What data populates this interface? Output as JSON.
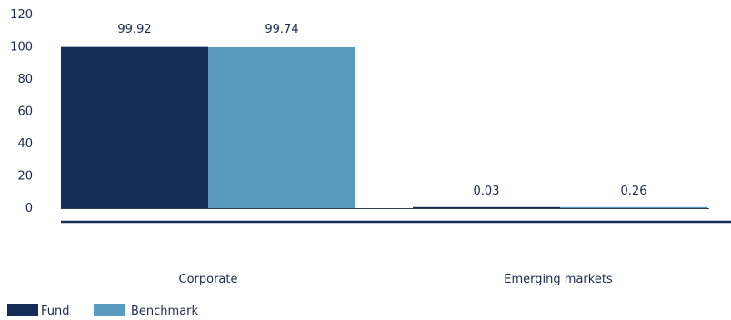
{
  "chart_data": {
    "type": "bar",
    "title": "",
    "xlabel": "",
    "ylabel": "",
    "categories": [
      "Corporate",
      "Emerging markets"
    ],
    "series": [
      {
        "name": "Fund",
        "values": [
          99.92,
          0.03
        ],
        "color": "#142d57"
      },
      {
        "name": "Benchmark",
        "values": [
          99.74,
          0.26
        ],
        "color": "#5b9abf"
      }
    ],
    "data_labels": [
      [
        "99.92",
        "0.03"
      ],
      [
        "99.74",
        "0.26"
      ]
    ],
    "ylim": [
      0,
      120
    ],
    "yticks": [
      0,
      20,
      40,
      60,
      80,
      100,
      120
    ],
    "grid": false,
    "legend": "bottom-left",
    "axis_color": "#142d57"
  }
}
